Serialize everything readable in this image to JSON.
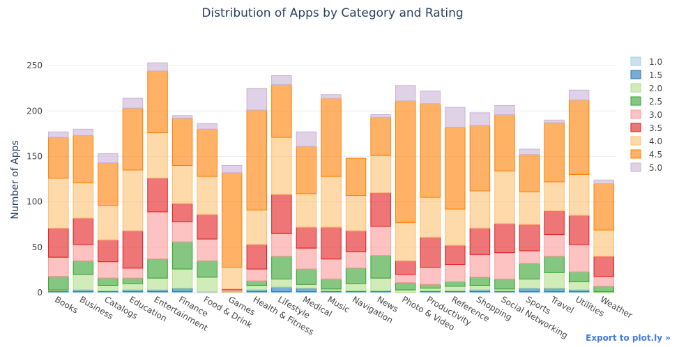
{
  "chart_data": {
    "type": "bar",
    "stacked": true,
    "title": "Distribution of Apps by Category and Rating",
    "xlabel": "",
    "ylabel": "Number of Apps",
    "ylim": [
      0,
      270
    ],
    "yticks": [
      0,
      50,
      100,
      150,
      200,
      250
    ],
    "grid": true,
    "legend_position": "right",
    "categories": [
      "Books",
      "Business",
      "Catalogs",
      "Education",
      "Entertainment",
      "Finance",
      "Food & Drink",
      "Games",
      "Health & Fitness",
      "Lifestyle",
      "Medical",
      "Music",
      "Navigation",
      "News",
      "Photo & Video",
      "Productivity",
      "Reference",
      "Shopping",
      "Social Networking",
      "Sports",
      "Travel",
      "Utilities",
      "Weather"
    ],
    "series": [
      {
        "name": "1.0",
        "color": "#a6cee3",
        "values": [
          1,
          1,
          1,
          1,
          1,
          1,
          1,
          0,
          1,
          1,
          1,
          1,
          1,
          1,
          0,
          1,
          1,
          1,
          1,
          1,
          1,
          1,
          0
        ]
      },
      {
        "name": "1.5",
        "color": "#1f78b4",
        "values": [
          1,
          2,
          1,
          2,
          2,
          4,
          0,
          0,
          2,
          5,
          4,
          1,
          1,
          1,
          0,
          1,
          1,
          2,
          1,
          4,
          4,
          2,
          0
        ]
      },
      {
        "name": "2.0",
        "color": "#b2df8a",
        "values": [
          1,
          17,
          6,
          7,
          13,
          21,
          16,
          1,
          5,
          9,
          4,
          2,
          8,
          14,
          3,
          3,
          5,
          5,
          2,
          10,
          17,
          9,
          1
        ]
      },
      {
        "name": "2.5",
        "color": "#33a02c",
        "values": [
          15,
          15,
          8,
          6,
          21,
          30,
          18,
          0,
          5,
          25,
          17,
          11,
          17,
          25,
          8,
          4,
          5,
          9,
          11,
          17,
          18,
          11,
          6
        ]
      },
      {
        "name": "3.0",
        "color": "#fb9a99",
        "values": [
          21,
          18,
          18,
          11,
          52,
          22,
          24,
          2,
          13,
          25,
          23,
          22,
          18,
          32,
          9,
          19,
          19,
          25,
          29,
          14,
          24,
          30,
          11
        ]
      },
      {
        "name": "3.5",
        "color": "#e31a1c",
        "values": [
          32,
          29,
          24,
          41,
          37,
          20,
          27,
          1,
          27,
          43,
          23,
          35,
          23,
          37,
          15,
          33,
          21,
          29,
          32,
          29,
          26,
          32,
          22
        ]
      },
      {
        "name": "4.0",
        "color": "#fdbf6f",
        "values": [
          55,
          39,
          38,
          67,
          50,
          42,
          42,
          24,
          38,
          63,
          37,
          56,
          39,
          41,
          42,
          44,
          40,
          41,
          58,
          36,
          32,
          45,
          29
        ]
      },
      {
        "name": "4.5",
        "color": "#ff7f00",
        "values": [
          45,
          52,
          47,
          68,
          68,
          52,
          52,
          104,
          110,
          58,
          52,
          86,
          41,
          42,
          134,
          103,
          90,
          72,
          62,
          41,
          65,
          82,
          51
        ]
      },
      {
        "name": "5.0",
        "color": "#cab2d6",
        "values": [
          6,
          7,
          10,
          11,
          9,
          3,
          6,
          8,
          24,
          10,
          16,
          4,
          0,
          3,
          17,
          14,
          22,
          14,
          10,
          6,
          3,
          11,
          4
        ]
      }
    ]
  },
  "ui": {
    "export_label": "Export to plot.ly »"
  }
}
